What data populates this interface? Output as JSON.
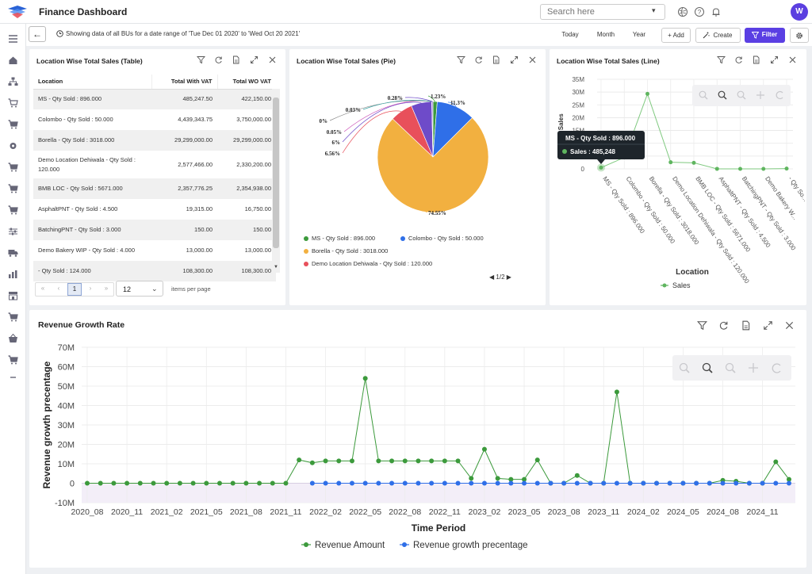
{
  "app": {
    "title": "Finance Dashboard",
    "avatar": "W"
  },
  "search": {
    "placeholder": "Search here"
  },
  "toolbar": {
    "info": "Showing data of all BUs for a date range of 'Tue Dec 01 2020' to 'Wed Oct 20 2021'",
    "today": "Today",
    "month": "Month",
    "year": "Year",
    "add": "+ Add",
    "create": "Create",
    "filter": "Filter"
  },
  "table_card": {
    "title": "Location Wise Total Sales (Table)",
    "headers": [
      "Location",
      "Total With VAT",
      "Total WO VAT"
    ],
    "rows": [
      {
        "location": "MS - Qty Sold : 896.000",
        "with_vat": "485,247.50",
        "wo_vat": "422,150.00"
      },
      {
        "location": "Colombo - Qty Sold : 50.000",
        "with_vat": "4,439,343.75",
        "wo_vat": "3,750,000.00"
      },
      {
        "location": "Borella - Qty Sold : 3018.000",
        "with_vat": "29,299,000.00",
        "wo_vat": "29,299,000.00"
      },
      {
        "location": "Demo Location Dehiwala - Qty Sold : 120.000",
        "with_vat": "2,577,466.00",
        "wo_vat": "2,330,200.00"
      },
      {
        "location": "BMB LOC - Qty Sold : 5671.000",
        "with_vat": "2,357,776.25",
        "wo_vat": "2,354,938.00"
      },
      {
        "location": "AsphaltPNT - Qty Sold : 4.500",
        "with_vat": "19,315.00",
        "wo_vat": "16,750.00"
      },
      {
        "location": "BatchingPNT - Qty Sold : 3.000",
        "with_vat": "150.00",
        "wo_vat": "150.00"
      },
      {
        "location": "Demo Bakery WIP - Qty Sold : 4.000",
        "with_vat": "13,000.00",
        "wo_vat": "13,000.00"
      },
      {
        "location": "- Qty Sold : 124.000",
        "with_vat": "108,300.00",
        "wo_vat": "108,300.00"
      }
    ],
    "pagination": {
      "first": "«",
      "prev": "‹",
      "page": "1",
      "next": "›",
      "last": "»",
      "per_page": "12",
      "per_page_label": "items per page"
    }
  },
  "pie_card": {
    "title": "Location Wise Total Sales (Pie)",
    "legend": [
      "MS - Qty Sold : 896.000",
      "Colombo - Qty Sold : 50.000",
      "Borella - Qty Sold : 3018.000",
      "Demo Location Dehiwala - Qty Sold : 120.000"
    ],
    "legend_pager": "1/2",
    "labels": [
      "1.23%",
      "11.3%",
      "74.55%",
      "6.56%",
      "6%",
      "0.05%",
      "0%",
      "0.03%",
      "0.28%"
    ]
  },
  "line_card": {
    "title": "Location Wise Total Sales (Line)",
    "ylabel": "l Sales",
    "xlabel": "Location",
    "legend": "Sales",
    "tooltip": {
      "title": "MS - Qty Sold : 896.000",
      "label": "Sales : 485,248"
    }
  },
  "revenue_card": {
    "title": "Revenue Growth Rate"
  },
  "colors": {
    "accent": "#5a3fe3",
    "green": "#3c9a3c",
    "blue": "#2f6fe8",
    "orange": "#f2b040",
    "red": "#e8505b",
    "purple": "#6e4bc9"
  },
  "chart_data": [
    {
      "type": "pie",
      "title": "Location Wise Total Sales (Pie)",
      "labels": [
        "MS - Qty Sold : 896.000",
        "Colombo - Qty Sold : 50.000",
        "Borella - Qty Sold : 3018.000",
        "Demo Location Dehiwala - Qty Sold : 120.000",
        "BMB LOC - Qty Sold : 5671.000",
        "AsphaltPNT - Qty Sold : 4.500",
        "BatchingPNT - Qty Sold : 3.000",
        "Demo Bakery WIP - Qty Sold : 4.000",
        "- Qty Sold : 124.000"
      ],
      "values": [
        1.23,
        11.3,
        74.55,
        6.56,
        6,
        0.05,
        0,
        0.03,
        0.28
      ]
    },
    {
      "type": "line",
      "title": "Location Wise Total Sales (Line)",
      "xlabel": "Location",
      "categories": [
        "MS - Qty Sold : 896.000",
        "Colombo - Qty Sold : 50.000",
        "Borella - Qty Sold : 3018.000",
        "Demo Location Dehiwala - Qty Sold : 120.000",
        "BMB LOC - Qty Sold : 5671.000",
        "AsphaltPNT - Qty Sold : 4.500",
        "BatchingPNT - Qty Sold : 3.000",
        "Demo Bakery WIP - Qty Sold : 4.000",
        "- Qty Sold : 124.000"
      ],
      "tick_labels": [
        "MS - Qty Sold : 896.000",
        "Colombo - Qty Sold : 50.000",
        "Borella - Qty Sold : 3018.000",
        "Demo Location Dehiwala - Qty Sold : 120.000",
        "BMB LOC - Qty Sold : 5671.000",
        "AsphaltPNT - Qty Sold : 4.500",
        "BatchingPNT - Qty Sold : 3.000",
        "Demo Bakery W...",
        "- Qty So..."
      ],
      "series": [
        {
          "name": "Sales",
          "values": [
            485247.5,
            4439343.75,
            29299000,
            2577466,
            2357776.25,
            19315,
            150,
            13000,
            108300
          ]
        }
      ],
      "ylim": [
        0,
        35000000
      ],
      "yticks": [
        "0",
        "5M",
        "10M",
        "15M",
        "20M",
        "25M",
        "30M",
        "35M"
      ],
      "grid": true,
      "legend": "bottom"
    },
    {
      "type": "line",
      "title": "Revenue Growth Rate",
      "xlabel": "Time Period",
      "ylabel": "Revenue growth precentage",
      "x": [
        "2020_08",
        "2020_09",
        "2020_10",
        "2020_11",
        "2020_12",
        "2021_01",
        "2021_02",
        "2021_03",
        "2021_04",
        "2021_05",
        "2021_06",
        "2021_07",
        "2021_08",
        "2021_09",
        "2021_10",
        "2021_11",
        "2021_12",
        "2022_01",
        "2022_02",
        "2022_03",
        "2022_04",
        "2022_05",
        "2022_06",
        "2022_07",
        "2022_08",
        "2022_09",
        "2022_10",
        "2022_11",
        "2022_12",
        "2023_01",
        "2023_02",
        "2023_03",
        "2023_04",
        "2023_05",
        "2023_06",
        "2023_07",
        "2023_08",
        "2023_09",
        "2023_10",
        "2023_11",
        "2023_12",
        "2024_01",
        "2024_02",
        "2024_03",
        "2024_04",
        "2024_05",
        "2024_06",
        "2024_07",
        "2024_08",
        "2024_09",
        "2024_10",
        "2024_11",
        "2024_12",
        "2025_01"
      ],
      "xticks": [
        "2020_08",
        "2020_11",
        "2021_02",
        "2021_05",
        "2021_08",
        "2021_11",
        "2022_02",
        "2022_05",
        "2022_08",
        "2022_11",
        "2023_02",
        "2023_05",
        "2023_08",
        "2023_11",
        "2024_02",
        "2024_05",
        "2024_08",
        "2024_11"
      ],
      "series": [
        {
          "name": "Revenue Amount",
          "values": [
            0,
            0,
            0,
            0,
            0,
            0,
            0,
            0,
            0,
            0,
            0,
            0,
            0,
            0,
            0,
            0,
            12000000,
            10500000,
            11500000,
            11500000,
            11500000,
            54000000,
            11500000,
            11500000,
            11500000,
            11500000,
            11500000,
            11500000,
            11500000,
            2500000,
            17500000,
            2500000,
            2000000,
            2000000,
            12000000,
            0,
            0,
            4000000,
            0,
            0,
            47000000,
            0,
            0,
            0,
            0,
            0,
            0,
            0,
            1500000,
            1000000,
            0,
            0,
            11000000,
            2000000
          ]
        },
        {
          "name": "Revenue growth precentage",
          "values": [
            null,
            null,
            null,
            null,
            null,
            null,
            null,
            null,
            null,
            null,
            null,
            null,
            null,
            null,
            null,
            null,
            null,
            0,
            0,
            0,
            0,
            0,
            0,
            0,
            0,
            0,
            0,
            0,
            0,
            0,
            0,
            0,
            0,
            0,
            0,
            0,
            0,
            0,
            0,
            0,
            0,
            0,
            0,
            0,
            0,
            0,
            0,
            0,
            0,
            0,
            0,
            0,
            0,
            0
          ]
        }
      ],
      "ylim": [
        -10000000,
        70000000
      ],
      "yticks": [
        "-10M",
        "0",
        "10M",
        "20M",
        "30M",
        "40M",
        "50M",
        "60M",
        "70M"
      ],
      "grid": true,
      "legend": "bottom"
    }
  ]
}
